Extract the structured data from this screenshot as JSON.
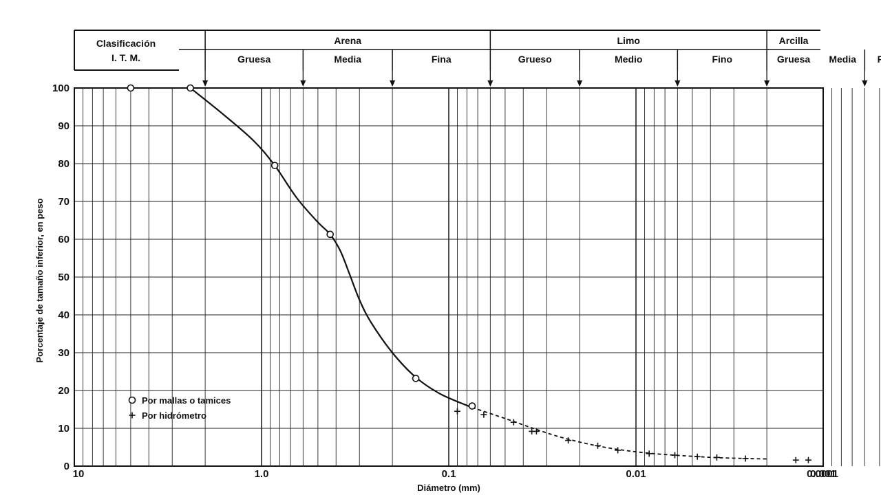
{
  "chart_data": {
    "type": "scatter",
    "title": "",
    "xlabel": "Diámetro (mm)",
    "ylabel": "Porcentaje de tamaño inferior, en peso",
    "x_scale": "log",
    "x_reversed": true,
    "xlim": [
      10,
      0.0001
    ],
    "ylim": [
      0,
      100
    ],
    "grid": true,
    "legend_position": "bottom-left",
    "x_ticks": [
      {
        "value": 10,
        "label": "10"
      },
      {
        "value": 1,
        "label": "1.0"
      },
      {
        "value": 0.1,
        "label": "0.1"
      },
      {
        "value": 0.01,
        "label": "0.01"
      },
      {
        "value": 0.001,
        "label": "0.001"
      },
      {
        "value": 0.0001,
        "label": "0.0001"
      }
    ],
    "y_ticks": [
      0,
      10,
      20,
      30,
      40,
      50,
      60,
      70,
      80,
      90,
      100
    ],
    "classification": {
      "header_line1": "Clasificación",
      "header_line2": "I. T. M.",
      "groups": [
        {
          "name": "Arena",
          "from": 2,
          "to": 0.06
        },
        {
          "name": "Limo",
          "from": 0.06,
          "to": 0.002
        },
        {
          "name": "Arcilla",
          "from": 0.002,
          "to": 0.0001
        }
      ],
      "subgroups": [
        {
          "name": "Gruesa",
          "from": 2,
          "to": 0.6
        },
        {
          "name": "Media",
          "from": 0.6,
          "to": 0.2
        },
        {
          "name": "Fina",
          "from": 0.2,
          "to": 0.06
        },
        {
          "name": "Grueso",
          "from": 0.06,
          "to": 0.02
        },
        {
          "name": "Medio",
          "from": 0.02,
          "to": 0.006
        },
        {
          "name": "Fino",
          "from": 0.006,
          "to": 0.002
        },
        {
          "name": "Gruesa",
          "from": 0.002,
          "to": 0.0006
        },
        {
          "name": "Media",
          "from": 0.0006,
          "to": 0.0002
        },
        {
          "name": "Fina",
          "from": 0.0002,
          "to": 0.0001
        }
      ],
      "boundaries": [
        2,
        0.6,
        0.2,
        0.06,
        0.02,
        0.006,
        0.002,
        0.0006,
        0.0002
      ]
    },
    "series": [
      {
        "name": "Por mallas o tamices",
        "marker": "circle",
        "x": [
          5.0,
          2.4,
          0.85,
          0.43,
          0.15,
          0.075
        ],
        "y": [
          100,
          100,
          79.5,
          61.3,
          23.2,
          15.9
        ]
      },
      {
        "name": "Por hidrómetro",
        "marker": "plus",
        "x": [
          0.09,
          0.065,
          0.045,
          0.036,
          0.034,
          0.023,
          0.016,
          0.0125,
          0.0085,
          0.0062,
          0.0047,
          0.0037,
          0.0026,
          0.0014,
          0.0012
        ],
        "y": [
          14.5,
          13.6,
          11.6,
          9.2,
          9.2,
          6.8,
          5.4,
          4.2,
          3.3,
          2.9,
          2.5,
          2.3,
          2.0,
          1.6,
          1.6
        ]
      }
    ],
    "fitted_curve": {
      "x": [
        2.4,
        1.6,
        1.1,
        0.85,
        0.65,
        0.5,
        0.43,
        0.38,
        0.34,
        0.3,
        0.26,
        0.2,
        0.15,
        0.11,
        0.075,
        0.05,
        0.035,
        0.025,
        0.017,
        0.012,
        0.008,
        0.005,
        0.0035,
        0.0025,
        0.002
      ],
      "y": [
        100,
        93,
        86,
        79.5,
        71,
        64.5,
        61.3,
        57,
        51,
        44,
        38,
        30,
        23.5,
        19,
        15.5,
        12.6,
        9.9,
        7.6,
        5.6,
        4.3,
        3.3,
        2.6,
        2.2,
        2.0,
        1.9
      ]
    }
  }
}
